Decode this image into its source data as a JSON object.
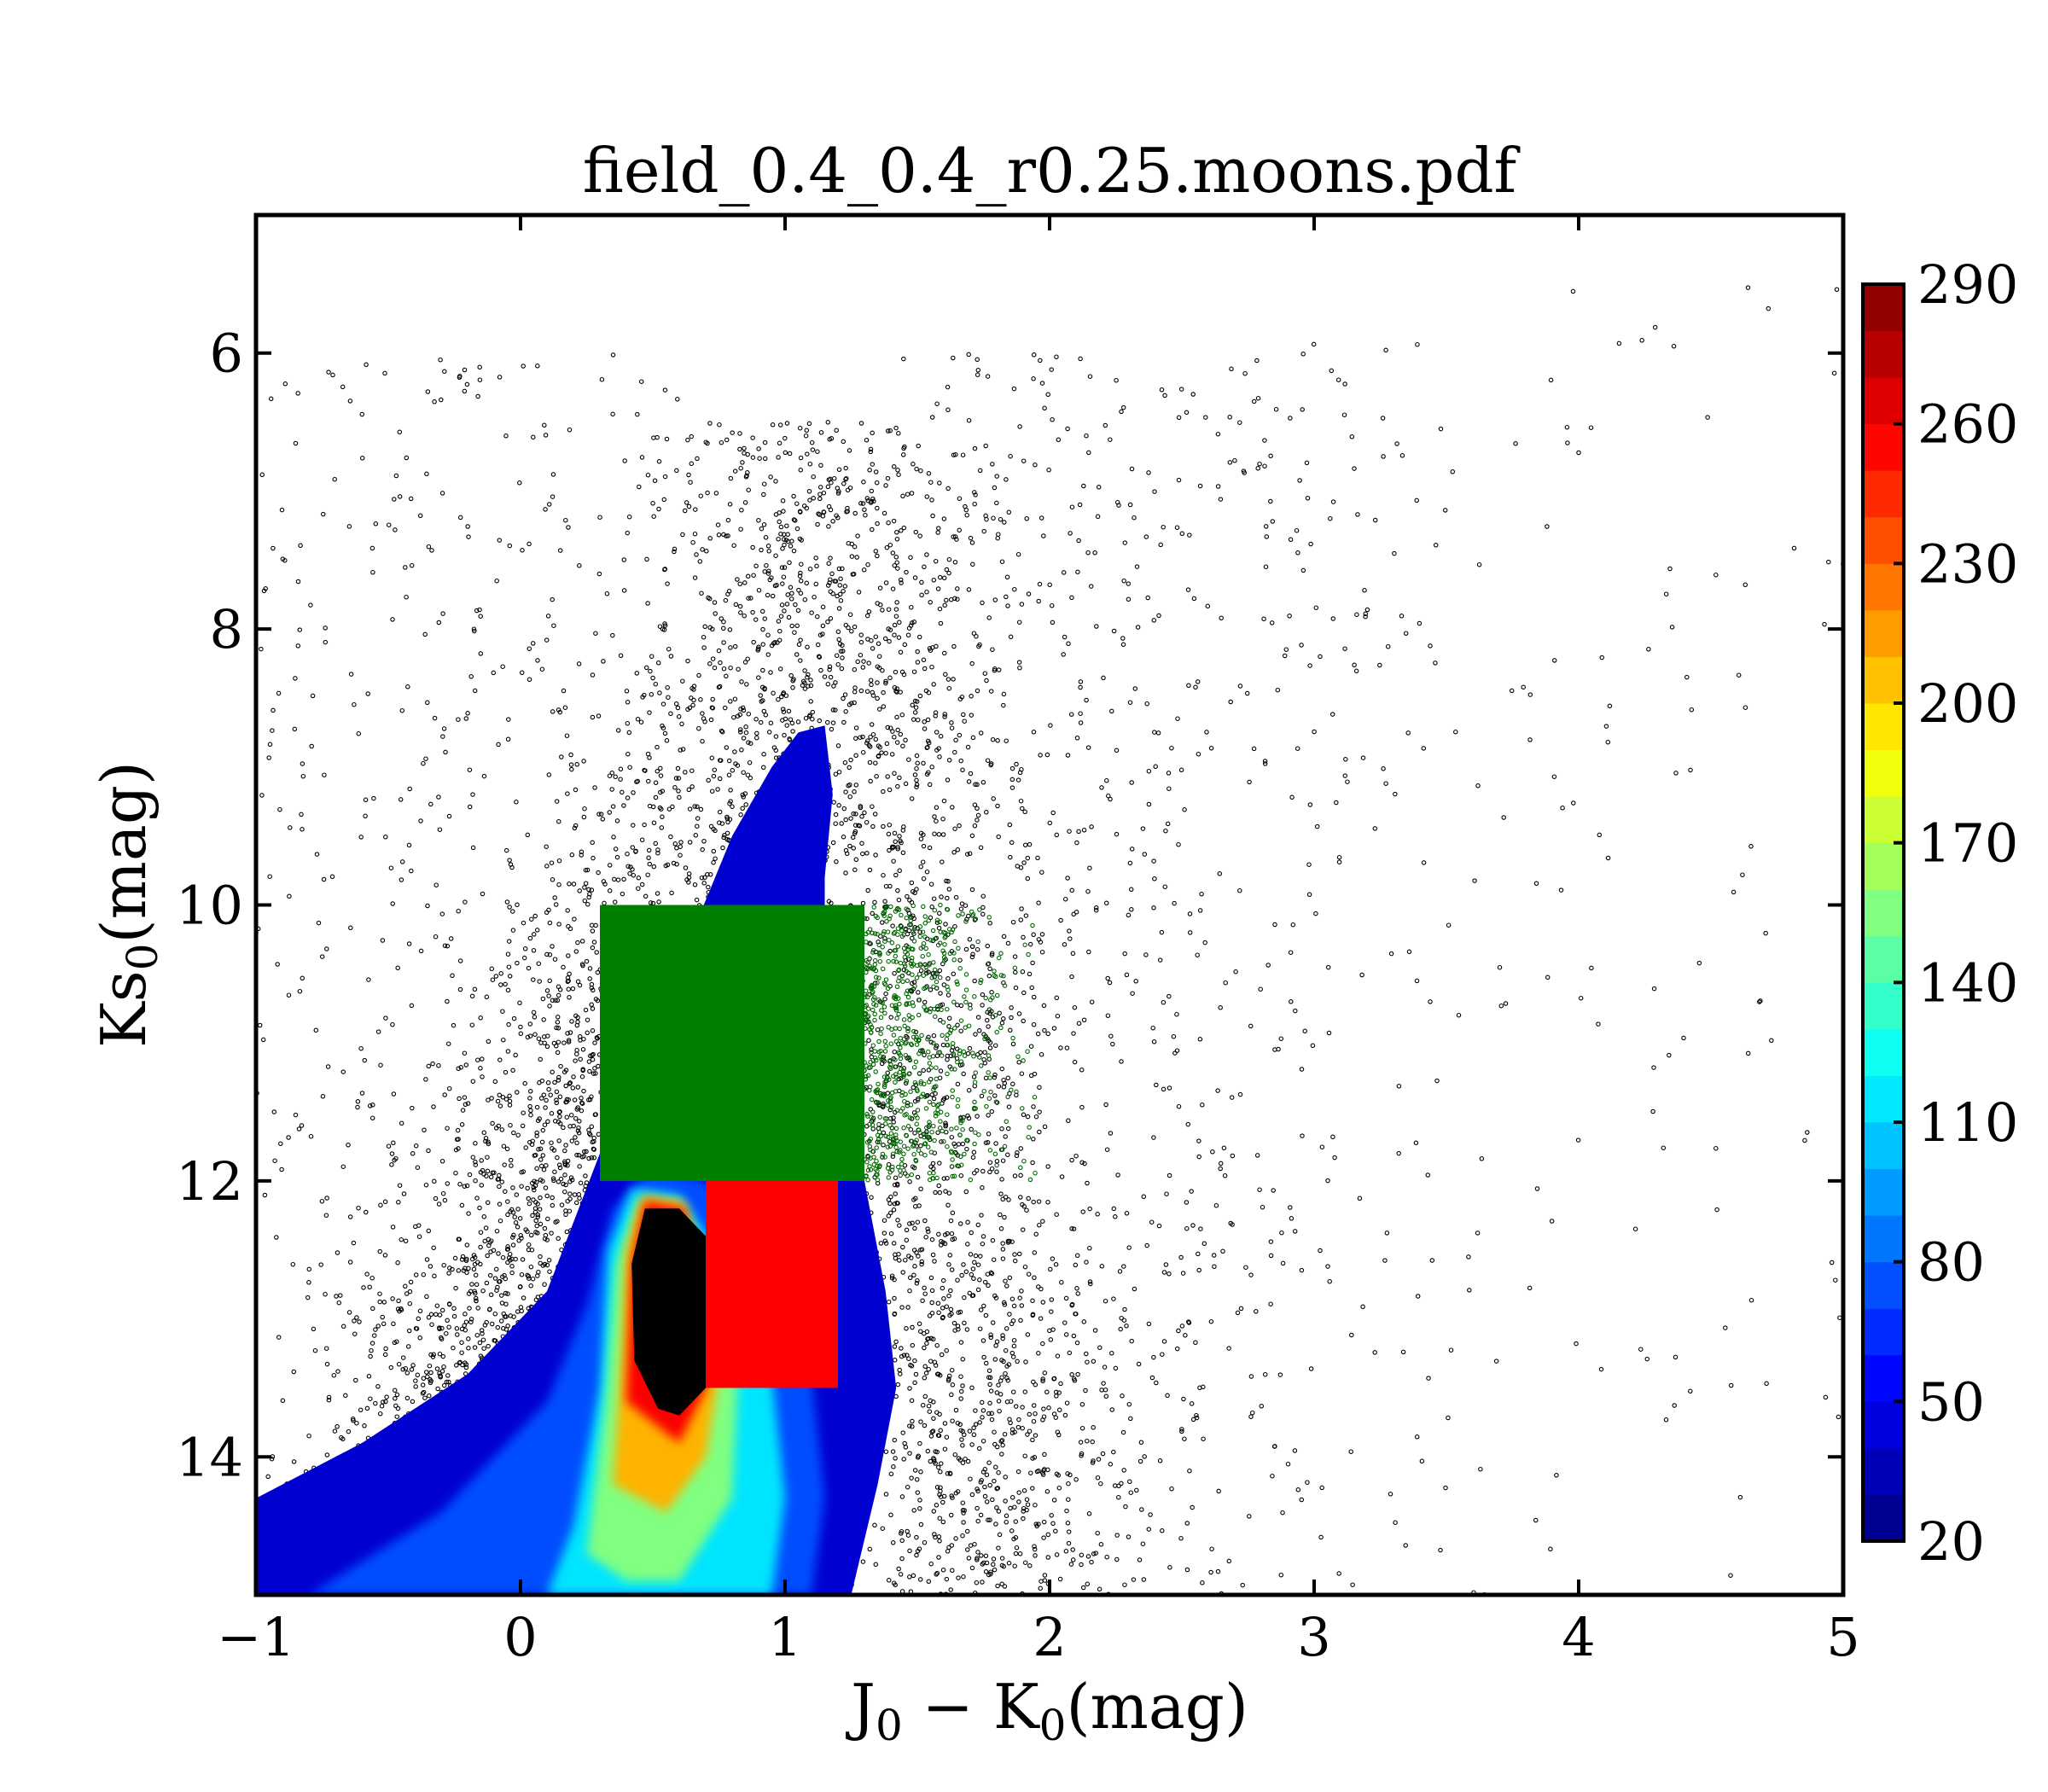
{
  "chart_data": {
    "type": "scatter",
    "title": "field_0.4_0.4_r0.25.moons.pdf",
    "xlabel": {
      "main": "J",
      "sub1": "0",
      "mid": " − K",
      "sub2": "0",
      "tail": "(mag)"
    },
    "ylabel": {
      "main": "Ks",
      "sub": "0",
      "tail": "(mag)"
    },
    "xlim": [
      -1,
      5
    ],
    "ylim": [
      15,
      5
    ],
    "y_inverted": true,
    "grid": false,
    "xticks": [
      -1,
      0,
      1,
      2,
      3,
      4,
      5
    ],
    "xtick_labels": [
      "−1",
      "0",
      "1",
      "2",
      "3",
      "4",
      "5"
    ],
    "yticks": [
      6,
      8,
      10,
      12,
      14
    ],
    "ytick_labels": [
      "6",
      "8",
      "10",
      "12",
      "14"
    ],
    "colorbar": {
      "colormap": "jet",
      "range": [
        20,
        290
      ],
      "ticks": [
        20,
        50,
        80,
        110,
        140,
        170,
        200,
        230,
        260,
        290
      ],
      "tick_labels": [
        "20",
        "50",
        "80",
        "110",
        "140",
        "170",
        "200",
        "230",
        "260",
        "290"
      ]
    },
    "density_contour": {
      "description_type": "filled density contour of star counts",
      "peak_region": {
        "x": [
          0.45,
          0.7
        ],
        "y": [
          12.2,
          13.6
        ]
      },
      "spine_top": [
        1.1,
        8.7
      ]
    },
    "selection_boxes": [
      {
        "color": "#008000",
        "x": [
          0.3,
          1.3
        ],
        "y": [
          10,
          12
        ]
      },
      {
        "color": "#ff0000",
        "x": [
          0.7,
          1.2
        ],
        "y": [
          12,
          13.5
        ]
      }
    ],
    "scatter_point_color": "#000000",
    "green_point_color": "#006400"
  }
}
